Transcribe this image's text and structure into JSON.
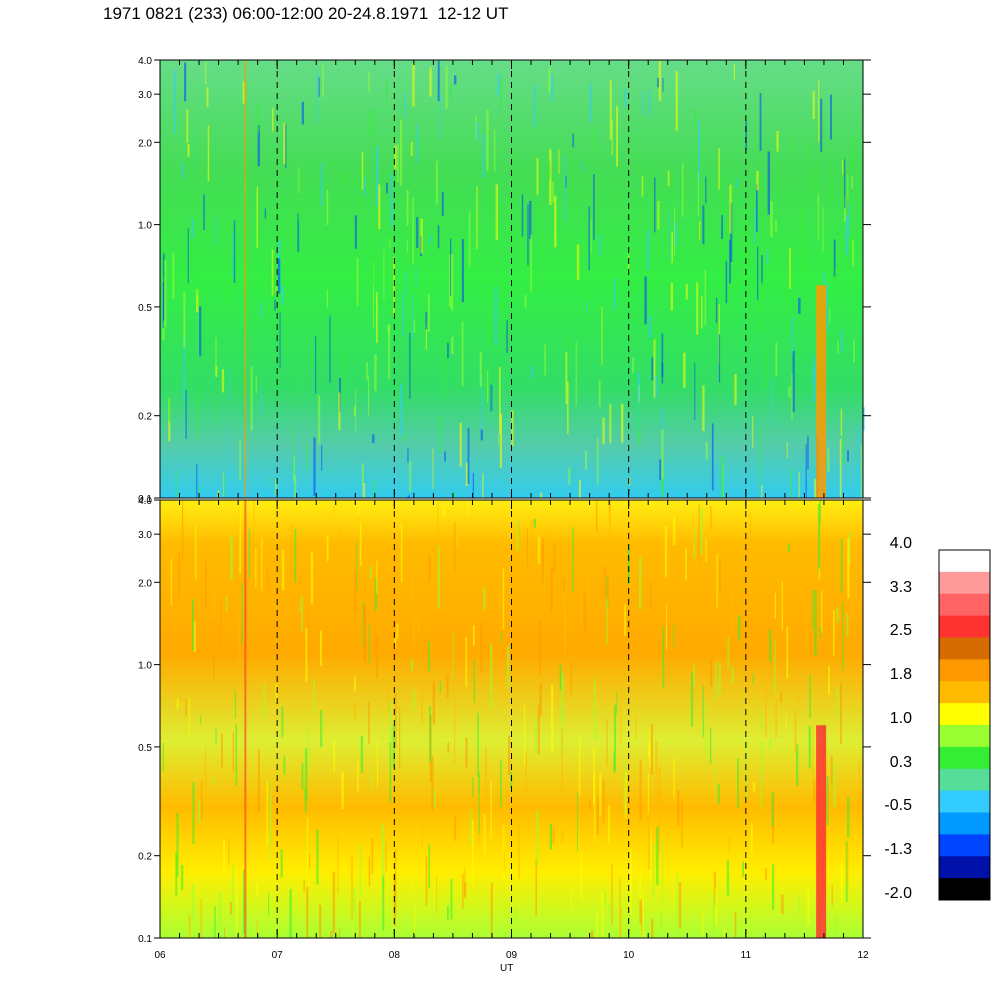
{
  "title": "1971 0821 (233) 06:00-12:00 20-24.8.1971  12-12 UT",
  "chart_data": [
    {
      "type": "heatmap",
      "panel": "top",
      "x_ticks": [
        "06",
        "07",
        "08",
        "09",
        "10",
        "11",
        "12"
      ],
      "x_range": [
        6,
        12
      ],
      "y_scale": "log",
      "y_range": [
        0.1,
        4.0
      ],
      "y_ticks": [
        {
          "value": 0.1,
          "label": "0.1"
        },
        {
          "value": 0.2,
          "label": "0.2"
        },
        {
          "value": 0.5,
          "label": "0.5"
        },
        {
          "value": 1.0,
          "label": "1.0"
        },
        {
          "value": 2.0,
          "label": "2.0"
        },
        {
          "value": 3.0,
          "label": "3.0"
        },
        {
          "value": 4.0,
          "label": "4.0"
        }
      ],
      "dashed_hour_lines": [
        7,
        8,
        9,
        10,
        11
      ],
      "dominant_levels": "mostly 0.3 to 1.0 (green), bluer near 0.1-0.2, orange streak near 11.6 UT"
    },
    {
      "type": "heatmap",
      "panel": "bottom",
      "x_ticks": [
        "06",
        "07",
        "08",
        "09",
        "10",
        "11",
        "12"
      ],
      "x_range": [
        6,
        12
      ],
      "y_scale": "log",
      "y_range": [
        0.1,
        4.0
      ],
      "y_ticks": [
        {
          "value": 0.1,
          "label": "0.1"
        },
        {
          "value": 0.2,
          "label": "0.2"
        },
        {
          "value": 0.5,
          "label": "0.5"
        },
        {
          "value": 1.0,
          "label": "1.0"
        },
        {
          "value": 2.0,
          "label": "2.0"
        },
        {
          "value": 3.0,
          "label": "3.0"
        },
        {
          "value": 4.0,
          "label": "4.0"
        }
      ],
      "dashed_hour_lines": [
        7,
        8,
        9,
        10,
        11
      ],
      "dominant_levels": "mostly 1.0 to 1.8 (yellow/orange), red streak near 11.6 UT"
    }
  ],
  "xlabel": "UT",
  "colorbar": {
    "labels": [
      "4.0",
      "3.3",
      "2.5",
      "1.8",
      "1.0",
      "0.3",
      "-0.5",
      "-1.3",
      "-2.0"
    ],
    "colors": [
      "#ffffff",
      "#ff9a9a",
      "#ff6464",
      "#ff3232",
      "#d46c00",
      "#ff9900",
      "#ffbb00",
      "#ffff00",
      "#99ff33",
      "#33ee33",
      "#55dd99",
      "#33ccff",
      "#0099ff",
      "#0044ff",
      "#0011aa",
      "#000000"
    ]
  }
}
